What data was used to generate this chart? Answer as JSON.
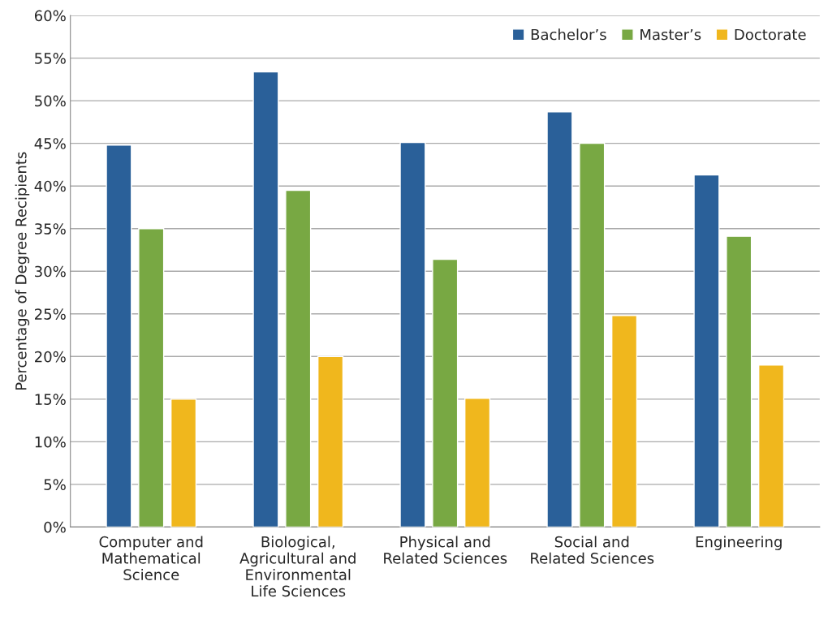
{
  "chart_data": {
    "type": "bar",
    "ylabel": "Percentage of Degree Recipients",
    "categories": [
      "Computer and\nMathematical\nScience",
      "Biological,\nAgricultural and\nEnvironmental\nLife Sciences",
      "Physical and\nRelated Sciences",
      "Social and\nRelated Sciences",
      "Engineering"
    ],
    "series": [
      {
        "name": "Bachelor’s",
        "color": "#2a6099",
        "values": [
          44.8,
          53.4,
          45.1,
          48.7,
          41.3
        ]
      },
      {
        "name": "Master’s",
        "color": "#78a843",
        "values": [
          35.0,
          39.5,
          31.4,
          45.0,
          34.1
        ]
      },
      {
        "name": "Doctorate",
        "color": "#f0b71d",
        "values": [
          15.0,
          20.0,
          15.1,
          24.8,
          19.0
        ]
      }
    ],
    "ylim": [
      0,
      60
    ],
    "yticks": [
      {
        "value": 0,
        "label": "0%"
      },
      {
        "value": 5,
        "label": "5%"
      },
      {
        "value": 10,
        "label": "10%"
      },
      {
        "value": 15,
        "label": "15%"
      },
      {
        "value": 20,
        "label": "20%"
      },
      {
        "value": 25,
        "label": "25%"
      },
      {
        "value": 30,
        "label": "30%"
      },
      {
        "value": 35,
        "label": "35%"
      },
      {
        "value": 40,
        "label": "40%"
      },
      {
        "value": 45,
        "label": "45%"
      },
      {
        "value": 50,
        "label": "50%"
      },
      {
        "value": 55,
        "label": "55%"
      },
      {
        "value": 60,
        "label": "60%"
      }
    ],
    "grid": "y",
    "legend": "top right"
  }
}
